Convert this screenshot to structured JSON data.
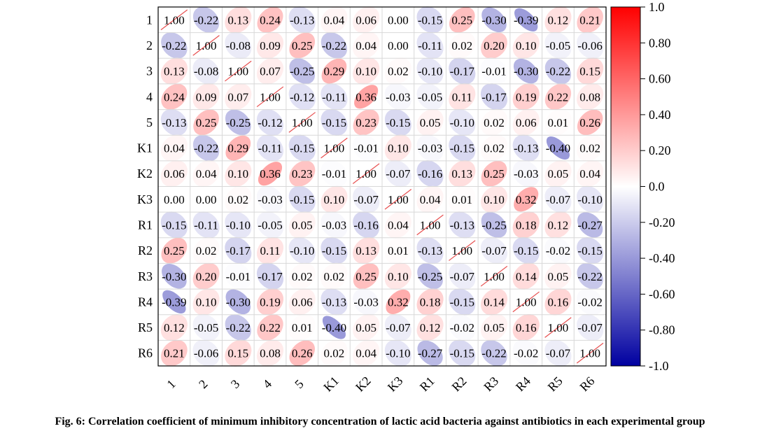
{
  "caption": "Fig. 6: Correlation coefficient of minimum inhibitory concentration of lactic acid bacteria against antibiotics in each experimental group",
  "chart_data": {
    "type": "heatmap",
    "title": "",
    "xlabel": "",
    "ylabel": "",
    "labels": [
      "1",
      "2",
      "3",
      "4",
      "5",
      "K1",
      "K2",
      "K3",
      "R1",
      "R2",
      "R3",
      "R4",
      "R5",
      "R6"
    ],
    "matrix": [
      [
        1.0,
        -0.22,
        0.13,
        0.24,
        -0.13,
        0.04,
        0.06,
        -0.0,
        -0.15,
        0.25,
        -0.3,
        -0.39,
        0.12,
        0.21
      ],
      [
        -0.22,
        1.0,
        -0.08,
        0.09,
        0.25,
        -0.22,
        0.04,
        -0.0,
        -0.11,
        0.02,
        0.2,
        0.1,
        -0.05,
        -0.06
      ],
      [
        0.13,
        -0.08,
        1.0,
        0.07,
        -0.25,
        0.29,
        0.1,
        0.02,
        -0.1,
        -0.17,
        -0.01,
        -0.3,
        -0.22,
        0.15
      ],
      [
        0.24,
        0.09,
        0.07,
        1.0,
        -0.12,
        -0.11,
        0.36,
        -0.03,
        -0.05,
        0.11,
        -0.17,
        0.19,
        0.22,
        0.08
      ],
      [
        -0.13,
        0.25,
        -0.25,
        -0.12,
        1.0,
        -0.15,
        0.23,
        -0.15,
        0.05,
        -0.1,
        0.02,
        0.06,
        0.01,
        0.26
      ],
      [
        0.04,
        -0.22,
        0.29,
        -0.11,
        -0.15,
        1.0,
        -0.01,
        0.1,
        -0.03,
        -0.15,
        0.02,
        -0.13,
        -0.4,
        0.02
      ],
      [
        0.06,
        0.04,
        0.1,
        0.36,
        0.23,
        -0.01,
        1.0,
        -0.07,
        -0.16,
        0.13,
        0.25,
        -0.03,
        0.05,
        0.04
      ],
      [
        -0.0,
        -0.0,
        0.02,
        -0.03,
        -0.15,
        0.1,
        -0.07,
        1.0,
        0.04,
        0.01,
        0.1,
        0.32,
        -0.07,
        -0.1
      ],
      [
        -0.15,
        -0.11,
        -0.1,
        -0.05,
        0.05,
        -0.03,
        -0.16,
        0.04,
        1.0,
        -0.13,
        -0.25,
        0.18,
        0.12,
        -0.27
      ],
      [
        0.25,
        0.02,
        -0.17,
        0.11,
        -0.1,
        -0.15,
        0.13,
        0.01,
        -0.13,
        1.0,
        -0.07,
        -0.15,
        -0.02,
        -0.15
      ],
      [
        -0.3,
        0.2,
        -0.01,
        -0.17,
        0.02,
        0.02,
        0.25,
        0.1,
        -0.25,
        -0.07,
        1.0,
        0.14,
        0.05,
        -0.22
      ],
      [
        -0.39,
        0.1,
        -0.3,
        0.19,
        0.06,
        -0.13,
        -0.03,
        0.32,
        0.18,
        -0.15,
        0.14,
        1.0,
        0.16,
        -0.02
      ],
      [
        0.12,
        -0.05,
        -0.22,
        0.22,
        0.01,
        -0.4,
        0.05,
        -0.07,
        0.12,
        -0.02,
        0.05,
        0.16,
        1.0,
        -0.07
      ],
      [
        0.21,
        -0.06,
        0.15,
        0.08,
        0.26,
        0.02,
        0.04,
        -0.1,
        -0.27,
        -0.15,
        -0.22,
        -0.02,
        -0.07,
        1.0
      ]
    ],
    "value_range": [
      -1.0,
      1.0
    ],
    "colorbar_ticks": [
      "1.0",
      "0.80",
      "0.60",
      "0.40",
      "0.20",
      "0.0",
      "-0.20",
      "-0.40",
      "-0.60",
      "-0.80",
      "-1.0"
    ],
    "colorbar_tick_values": [
      1.0,
      0.8,
      0.6,
      0.4,
      0.2,
      0.0,
      -0.2,
      -0.4,
      -0.6,
      -0.8,
      -1.0
    ],
    "colors": {
      "negative": "#0000a0",
      "neutral": "#ffffff",
      "positive": "#ff0000",
      "diagonal_line": "#e85050"
    },
    "grid": true,
    "legend_position": "right"
  }
}
